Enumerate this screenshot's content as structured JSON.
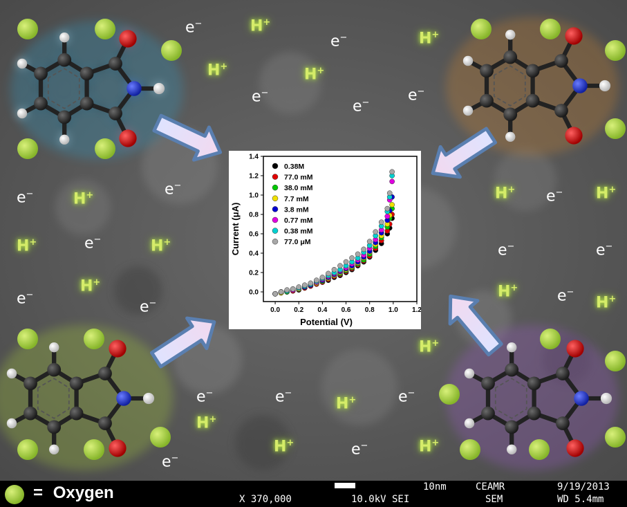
{
  "background_color": "#5a5a5a",
  "oxygen_color": "#a6d13c",
  "electron_label": "e−",
  "proton_label": "H+",
  "molecule_glow_colors": [
    "#2aa4d4",
    "#e08a26",
    "#a5c93a",
    "#9a5cc4"
  ],
  "legend": {
    "symbol": "=",
    "text": "Oxygen"
  },
  "sem_info": {
    "scale": "10nm",
    "lab": "CEAMR",
    "date": "9/19/2013",
    "magnification": "X 370,000",
    "voltage": "10.0kV SEI",
    "mode": "SEM",
    "wd": "WD 5.4mm"
  },
  "chart_data": {
    "type": "scatter",
    "xlabel": "Potential (V)",
    "ylabel": "Current (μA)",
    "xlim": [
      -0.1,
      1.2
    ],
    "ylim": [
      -0.1,
      1.4
    ],
    "xticks": [
      "0.0",
      "0.2",
      "0.4",
      "0.6",
      "0.8",
      "1.0",
      "1.2"
    ],
    "yticks": [
      "0.0",
      "0.2",
      "0.4",
      "0.6",
      "0.8",
      "1.0",
      "1.2",
      "1.4"
    ],
    "legend_position": "top-left",
    "series": [
      {
        "name": "0.38M",
        "color": "#000000",
        "x": [
          0.0,
          0.05,
          0.1,
          0.15,
          0.2,
          0.25,
          0.3,
          0.35,
          0.4,
          0.45,
          0.5,
          0.55,
          0.6,
          0.65,
          0.7,
          0.75,
          0.8,
          0.85,
          0.9,
          0.95,
          0.97,
          0.99
        ],
        "y": [
          -0.02,
          -0.01,
          0.0,
          0.01,
          0.02,
          0.04,
          0.06,
          0.08,
          0.1,
          0.12,
          0.15,
          0.17,
          0.2,
          0.23,
          0.27,
          0.31,
          0.36,
          0.43,
          0.5,
          0.6,
          0.66,
          0.76
        ]
      },
      {
        "name": "77.0 mM",
        "color": "#e00000",
        "x": [
          0.0,
          0.05,
          0.1,
          0.15,
          0.2,
          0.25,
          0.3,
          0.35,
          0.4,
          0.45,
          0.5,
          0.55,
          0.6,
          0.65,
          0.7,
          0.75,
          0.8,
          0.85,
          0.9,
          0.95,
          0.97,
          0.99
        ],
        "y": [
          -0.02,
          -0.01,
          0.0,
          0.01,
          0.03,
          0.04,
          0.06,
          0.08,
          0.1,
          0.13,
          0.16,
          0.18,
          0.21,
          0.24,
          0.28,
          0.32,
          0.37,
          0.45,
          0.53,
          0.63,
          0.7,
          0.8
        ]
      },
      {
        "name": "38.0 mM",
        "color": "#00c800",
        "x": [
          0.0,
          0.05,
          0.1,
          0.15,
          0.2,
          0.25,
          0.3,
          0.35,
          0.4,
          0.45,
          0.5,
          0.55,
          0.6,
          0.65,
          0.7,
          0.75,
          0.8,
          0.85,
          0.9,
          0.95,
          0.97,
          0.99
        ],
        "y": [
          -0.02,
          -0.01,
          0.0,
          0.02,
          0.03,
          0.05,
          0.07,
          0.09,
          0.11,
          0.14,
          0.17,
          0.19,
          0.22,
          0.25,
          0.29,
          0.33,
          0.39,
          0.47,
          0.56,
          0.67,
          0.76,
          0.86
        ]
      },
      {
        "name": "7.7 mM",
        "color": "#f0e000",
        "x": [
          0.0,
          0.05,
          0.1,
          0.15,
          0.2,
          0.25,
          0.3,
          0.35,
          0.4,
          0.45,
          0.5,
          0.55,
          0.6,
          0.65,
          0.7,
          0.75,
          0.8,
          0.85,
          0.9,
          0.95,
          0.97,
          0.99
        ],
        "y": [
          -0.02,
          -0.01,
          0.01,
          0.02,
          0.03,
          0.05,
          0.07,
          0.09,
          0.12,
          0.14,
          0.17,
          0.2,
          0.23,
          0.26,
          0.3,
          0.35,
          0.41,
          0.49,
          0.58,
          0.7,
          0.79,
          0.9
        ]
      },
      {
        "name": "3.8 mM",
        "color": "#0000d0",
        "x": [
          0.0,
          0.05,
          0.1,
          0.15,
          0.2,
          0.25,
          0.3,
          0.35,
          0.4,
          0.45,
          0.5,
          0.55,
          0.6,
          0.65,
          0.7,
          0.75,
          0.8,
          0.85,
          0.9,
          0.95,
          0.97,
          0.99
        ],
        "y": [
          -0.02,
          0.0,
          0.01,
          0.02,
          0.04,
          0.05,
          0.07,
          0.1,
          0.12,
          0.15,
          0.18,
          0.21,
          0.24,
          0.27,
          0.31,
          0.36,
          0.42,
          0.51,
          0.61,
          0.74,
          0.84,
          0.98
        ]
      },
      {
        "name": "0.77 mM",
        "color": "#e000e0",
        "x": [
          0.0,
          0.05,
          0.1,
          0.15,
          0.2,
          0.25,
          0.3,
          0.35,
          0.4,
          0.45,
          0.5,
          0.55,
          0.6,
          0.65,
          0.7,
          0.75,
          0.8,
          0.85,
          0.9,
          0.95,
          0.97,
          0.99
        ],
        "y": [
          -0.02,
          0.0,
          0.01,
          0.02,
          0.04,
          0.06,
          0.08,
          0.1,
          0.13,
          0.16,
          0.19,
          0.22,
          0.25,
          0.29,
          0.33,
          0.38,
          0.45,
          0.54,
          0.64,
          0.78,
          0.95,
          1.14
        ]
      },
      {
        "name": "0.38 mM",
        "color": "#00d0d0",
        "x": [
          0.0,
          0.05,
          0.1,
          0.15,
          0.2,
          0.25,
          0.3,
          0.35,
          0.4,
          0.45,
          0.5,
          0.55,
          0.6,
          0.65,
          0.7,
          0.75,
          0.8,
          0.85,
          0.9,
          0.95,
          0.97,
          0.99
        ],
        "y": [
          -0.02,
          0.0,
          0.01,
          0.03,
          0.04,
          0.06,
          0.08,
          0.11,
          0.14,
          0.17,
          0.2,
          0.23,
          0.27,
          0.31,
          0.35,
          0.41,
          0.48,
          0.58,
          0.68,
          0.83,
          0.98,
          1.2
        ]
      },
      {
        "name": "77.0 μM",
        "color": "#a8a8a8",
        "x": [
          0.0,
          0.05,
          0.1,
          0.15,
          0.2,
          0.25,
          0.3,
          0.35,
          0.4,
          0.45,
          0.5,
          0.55,
          0.6,
          0.65,
          0.7,
          0.75,
          0.8,
          0.85,
          0.9,
          0.95,
          0.97,
          0.99
        ],
        "y": [
          -0.02,
          0.0,
          0.02,
          0.03,
          0.05,
          0.07,
          0.09,
          0.12,
          0.15,
          0.19,
          0.23,
          0.27,
          0.31,
          0.35,
          0.39,
          0.44,
          0.52,
          0.62,
          0.72,
          0.86,
          1.02,
          1.24
        ]
      }
    ]
  }
}
